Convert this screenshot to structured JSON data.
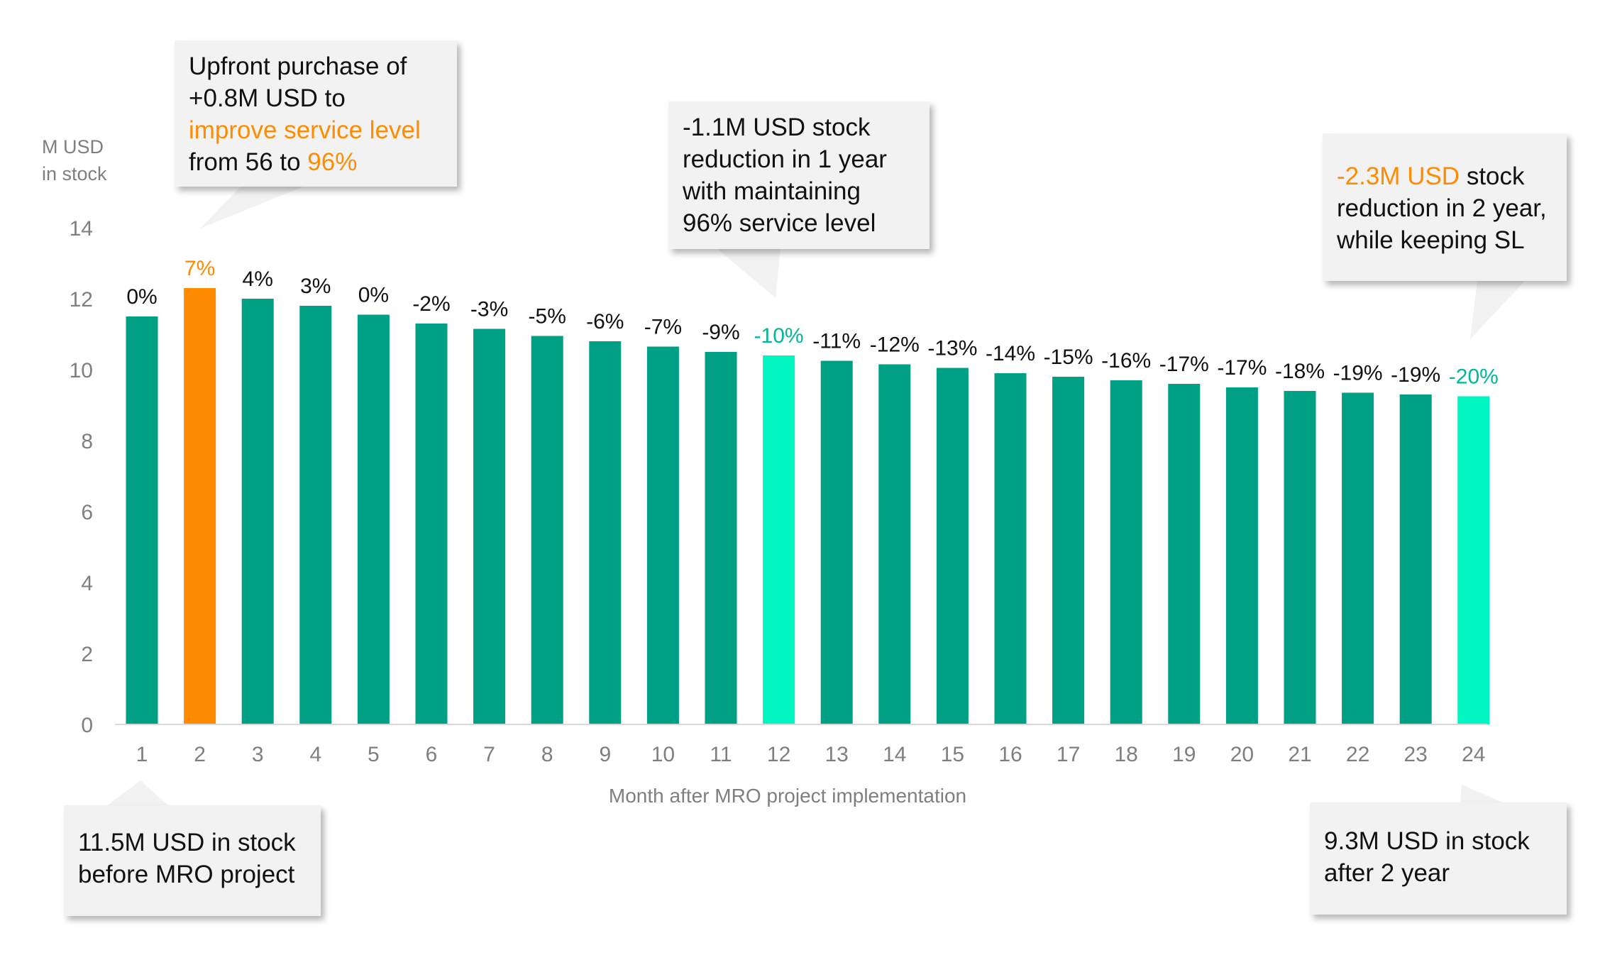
{
  "chart_data": {
    "type": "bar",
    "ylabel": "M USD\nin stock",
    "ylabel_lines": [
      "M USD",
      "in stock"
    ],
    "xlabel": "Month after MRO project implementation",
    "ylim": [
      0,
      14
    ],
    "yticks": [
      0,
      2,
      4,
      6,
      8,
      10,
      12,
      14
    ],
    "grid": false,
    "categories": [
      "1",
      "2",
      "3",
      "4",
      "5",
      "6",
      "7",
      "8",
      "9",
      "10",
      "11",
      "12",
      "13",
      "14",
      "15",
      "16",
      "17",
      "18",
      "19",
      "20",
      "21",
      "22",
      "23",
      "24"
    ],
    "values": [
      11.5,
      12.3,
      12.0,
      11.8,
      11.55,
      11.3,
      11.15,
      10.95,
      10.8,
      10.65,
      10.5,
      10.4,
      10.25,
      10.15,
      10.05,
      9.9,
      9.8,
      9.7,
      9.6,
      9.5,
      9.4,
      9.35,
      9.3,
      9.25
    ],
    "data_labels": [
      "0%",
      "7%",
      "4%",
      "3%",
      "0%",
      "-2%",
      "-3%",
      "-5%",
      "-6%",
      "-7%",
      "-9%",
      "-10%",
      "-11%",
      "-12%",
      "-13%",
      "-14%",
      "-15%",
      "-16%",
      "-17%",
      "-17%",
      "-18%",
      "-19%",
      "-19%",
      "-20%"
    ],
    "bar_colors": [
      "#00a085",
      "#ff8c00",
      "#00a085",
      "#00a085",
      "#00a085",
      "#00a085",
      "#00a085",
      "#00a085",
      "#00a085",
      "#00a085",
      "#00a085",
      "#00f5c0",
      "#00a085",
      "#00a085",
      "#00a085",
      "#00a085",
      "#00a085",
      "#00a085",
      "#00a085",
      "#00a085",
      "#00a085",
      "#00a085",
      "#00a085",
      "#00f5c0"
    ],
    "label_colors": [
      "#111111",
      "#ff8c00",
      "#111111",
      "#111111",
      "#111111",
      "#111111",
      "#111111",
      "#111111",
      "#111111",
      "#111111",
      "#111111",
      "#00b896",
      "#111111",
      "#111111",
      "#111111",
      "#111111",
      "#111111",
      "#111111",
      "#111111",
      "#111111",
      "#111111",
      "#111111",
      "#111111",
      "#00b896"
    ]
  },
  "colors": {
    "bar": "#00a085",
    "highlight_orange": "#ff8c00",
    "highlight_mint": "#00f5c0",
    "callout_bg": "#f2f2f2",
    "axis_text": "#7f7f7f"
  },
  "callouts": {
    "upfront": {
      "line1": "Upfront purchase of",
      "line2": "+0.8M USD to",
      "line3_hl": "improve service level",
      "line4_a": "from 56 to ",
      "line4_hl": "96%"
    },
    "year1": {
      "line1": "-1.1M USD stock",
      "line2": "reduction in 1 year",
      "line3": "with maintaining",
      "line4": "96% service level"
    },
    "year2": {
      "line1_hl": "-2.3M USD",
      "line1_b": " stock",
      "line2": "reduction in 2 year,",
      "line3": "while keeping SL"
    },
    "before": {
      "line1": "11.5M USD in stock",
      "line2": "before MRO project"
    },
    "after": {
      "line1": "9.3M USD in stock",
      "line2": "after 2 year"
    }
  }
}
